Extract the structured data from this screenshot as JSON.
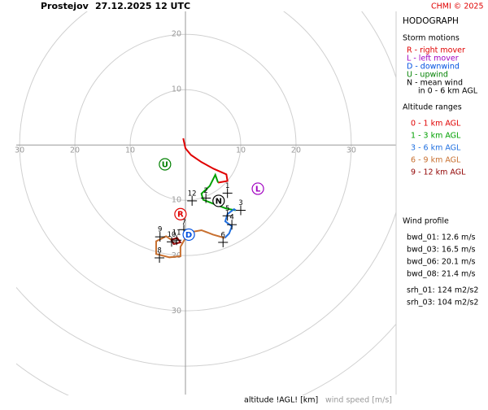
{
  "chart_data": {
    "type": "hodograph",
    "station": "Prostejov",
    "time": "27.12.2025 12 UTC",
    "credit": "CHMI © 2025",
    "title": "HODOGRAPH",
    "storm_motions_title": "Storm motions",
    "storm_motions": [
      {
        "letter": "R",
        "legend": "R - right mover",
        "color": "#e00000",
        "x": -0.9,
        "y": -12.5
      },
      {
        "letter": "L",
        "legend": "L - left mover",
        "color": "#a000c0",
        "x": 13.1,
        "y": -7.9
      },
      {
        "letter": "D",
        "legend": "D - downwind",
        "color": "#0050e0",
        "x": 0.6,
        "y": -16.2
      },
      {
        "letter": "U",
        "legend": "U - upwind",
        "color": "#008000",
        "x": -3.7,
        "y": -3.5
      },
      {
        "letter": "N",
        "legend": "N - mean wind",
        "color": "#000000",
        "x": 6.0,
        "y": -10.1
      }
    ],
    "mean_wind_note": "in 0 - 6 km AGL",
    "ranges_title": "Altitude ranges",
    "series": [
      {
        "name": "0 - 1 km AGL",
        "color": "#e00000",
        "x": [
          -0.4,
          0,
          1.0,
          2.9,
          5.1,
          7.4,
          7.6,
          5.9
        ],
        "values": [
          1.2,
          -0.6,
          -1.8,
          -3.1,
          -4.3,
          -5.3,
          -6.5,
          -6.8
        ]
      },
      {
        "name": "1 - 3 km AGL",
        "color": "#00a000",
        "x": [
          5.9,
          5.4,
          4.4,
          2.9,
          3.2,
          5.0,
          7.4,
          9.1
        ],
        "values": [
          -6.8,
          -5.4,
          -7.4,
          -8.8,
          -9.9,
          -10.6,
          -11.5,
          -11.8
        ]
      },
      {
        "name": "3 - 6 km AGL",
        "color": "#2070e0",
        "x": [
          9.1,
          8.8,
          7.6,
          7.2,
          8.4,
          7.9,
          7.1
        ],
        "values": [
          -11.8,
          -11.6,
          -12.5,
          -13.8,
          -14.7,
          -16.0,
          -16.8
        ]
      },
      {
        "name": "6 - 9 km AGL",
        "color": "#c87030",
        "x": [
          7.1,
          5.0,
          2.9,
          1.2,
          0,
          -0.9,
          -0.9,
          -2.9,
          -5.3,
          -5.3,
          -3.5,
          -2.6
        ],
        "values": [
          -16.8,
          -16.2,
          -15.4,
          -15.7,
          -16.8,
          -18.4,
          -20.1,
          -20.3,
          -19.7,
          -17.4,
          -16.5,
          -17.1
        ]
      },
      {
        "name": "9 - 12 km AGL",
        "color": "#900000",
        "x": [
          -2.6,
          -1.5,
          -0.9,
          -2.1,
          -2.6
        ],
        "values": [
          -17.1,
          -16.8,
          -17.6,
          -17.9,
          -17.1
        ]
      }
    ],
    "altitude_markers": [
      {
        "label": "1",
        "x": 7.6,
        "y": -8.7
      },
      {
        "label": "2",
        "x": 3.7,
        "y": -9.6
      },
      {
        "label": "3",
        "x": 10.0,
        "y": -11.8
      },
      {
        "label": "4",
        "x": 8.4,
        "y": -14.4
      },
      {
        "label": "5",
        "x": 7.6,
        "y": -12.8
      },
      {
        "label": "6",
        "x": 6.8,
        "y": -17.6
      },
      {
        "label": "7",
        "x": -0.3,
        "y": -15.3
      },
      {
        "label": "8",
        "x": -4.7,
        "y": -20.4
      },
      {
        "label": "9",
        "x": -4.6,
        "y": -16.6
      },
      {
        "label": "10",
        "x": -2.5,
        "y": -17.5
      },
      {
        "label": "11",
        "x": -1.6,
        "y": -17.2
      },
      {
        "label": "12",
        "x": 1.2,
        "y": -10.1
      }
    ],
    "xlim": [
      -30.6,
      38.1
    ],
    "ylim": [
      -45.1,
      26.2
    ],
    "xticks": [
      {
        "value": -30,
        "label": "30"
      },
      {
        "value": -20,
        "label": "20"
      },
      {
        "value": -10,
        "label": "10"
      },
      10,
      20,
      30
    ],
    "yticks": [
      20,
      10,
      {
        "value": -10,
        "label": "10"
      },
      {
        "value": -20,
        "label": "20"
      },
      {
        "value": -30,
        "label": "30"
      }
    ],
    "profile_title": "Wind profile",
    "profile": [
      "bwd_01: 12.6 m/s",
      "bwd_03: 16.5 m/s",
      "bwd_06: 20.1 m/s",
      "bwd_08: 21.4 m/s",
      "srh_01: 124 m2/s2",
      "srh_03: 104 m2/s2"
    ],
    "footer_altitude": "altitude !AGL! [km]",
    "footer_speed": "wind speed [m/s]"
  }
}
